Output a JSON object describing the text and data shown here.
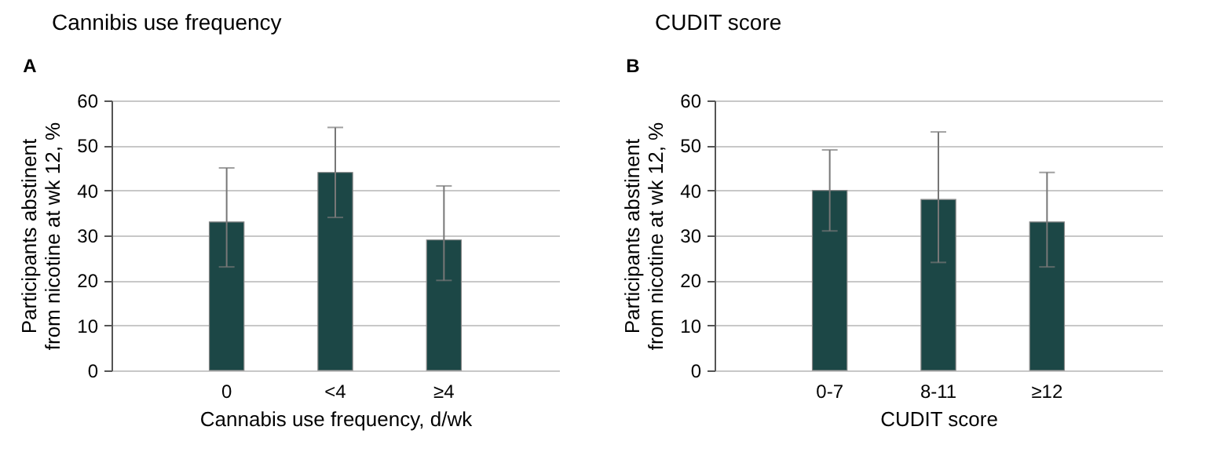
{
  "chart_data": [
    {
      "type": "bar",
      "title": "Cannibis use frequency",
      "annotations": [
        "A"
      ],
      "xlabel": "Cannabis use frequency, d/wk",
      "ylabel": "Participants abstinent from nicotine at wk 12, %",
      "categories": [
        "0",
        "<4",
        "≥4"
      ],
      "values": [
        33,
        44,
        29
      ],
      "errors": [
        [
          23,
          45
        ],
        [
          34,
          54
        ],
        [
          20,
          41
        ]
      ],
      "color": "#1c4746",
      "ylim": [
        0,
        60
      ],
      "yticks": [
        0,
        10,
        20,
        30,
        40,
        50,
        60
      ],
      "grid": "y"
    },
    {
      "type": "bar",
      "title": "CUDIT score",
      "annotations": [
        "B"
      ],
      "xlabel": "CUDIT score",
      "ylabel": "Participants abstinent from nicotine at wk 12, %",
      "categories": [
        "0-7",
        "8-11",
        "≥12"
      ],
      "values": [
        40,
        38,
        33
      ],
      "errors": [
        [
          31,
          49
        ],
        [
          24,
          53
        ],
        [
          23,
          44
        ]
      ],
      "color": "#1c4746",
      "ylim": [
        0,
        60
      ],
      "yticks": [
        0,
        10,
        20,
        30,
        40,
        50,
        60
      ],
      "grid": "y"
    }
  ]
}
